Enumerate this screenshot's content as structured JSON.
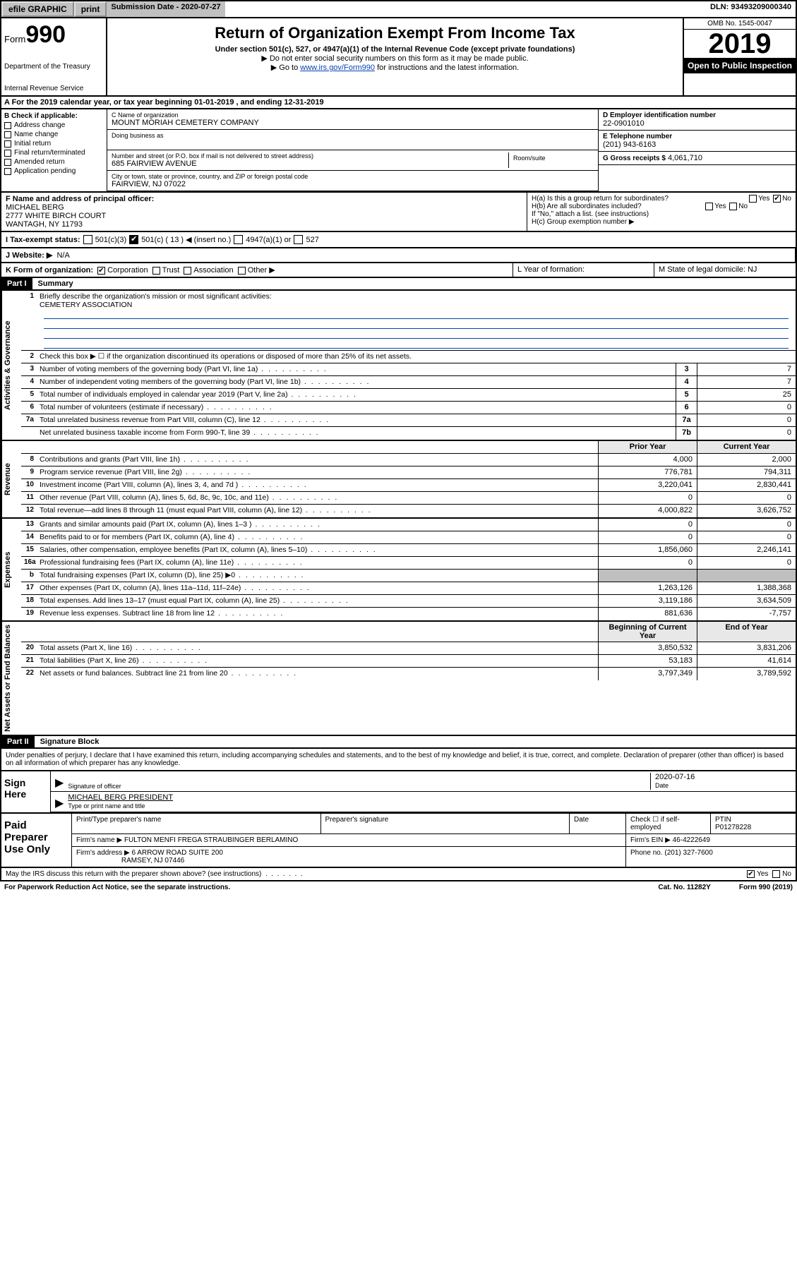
{
  "topbar": {
    "efile": "efile GRAPHIC",
    "print": "print",
    "subdate_label": "Submission Date - 2020-07-27",
    "dln": "DLN: 93493209000340"
  },
  "header": {
    "form_label": "Form",
    "form_no": "990",
    "dept1": "Department of the Treasury",
    "dept2": "Internal Revenue Service",
    "title": "Return of Organization Exempt From Income Tax",
    "sub1": "Under section 501(c), 527, or 4947(a)(1) of the Internal Revenue Code (except private foundations)",
    "sub2": "▶ Do not enter social security numbers on this form as it may be made public.",
    "sub3_pre": "▶ Go to ",
    "sub3_link": "www.irs.gov/Form990",
    "sub3_post": " for instructions and the latest information.",
    "omb": "OMB No. 1545-0047",
    "year": "2019",
    "open": "Open to Public Inspection"
  },
  "rowA": "A   For the 2019 calendar year, or tax year beginning 01-01-2019     , and ending 12-31-2019",
  "sectionB": {
    "label": "B Check if applicable:",
    "items": [
      "Address change",
      "Name change",
      "Initial return",
      "Final return/terminated",
      "Amended return",
      "Application pending"
    ]
  },
  "sectionC": {
    "name_lbl": "C Name of organization",
    "name": "MOUNT MORIAH CEMETERY COMPANY",
    "dba_lbl": "Doing business as",
    "addr_lbl": "Number and street (or P.O. box if mail is not delivered to street address)",
    "room_lbl": "Room/suite",
    "addr": "685 FAIRVIEW AVENUE",
    "city_lbl": "City or town, state or province, country, and ZIP or foreign postal code",
    "city": "FAIRVIEW, NJ  07022"
  },
  "sectionD": {
    "lbl": "D Employer identification number",
    "val": "22-0901010"
  },
  "sectionE": {
    "lbl": "E Telephone number",
    "val": "(201) 943-6163"
  },
  "sectionG": {
    "lbl": "G Gross receipts $",
    "val": "4,061,710"
  },
  "sectionF": {
    "lbl": "F  Name and address of principal officer:",
    "name": "MICHAEL BERG",
    "addr1": "2777 WHITE BIRCH COURT",
    "addr2": "WANTAGH, NY  11793"
  },
  "sectionH": {
    "a": "H(a)  Is this a group return for subordinates?",
    "a_yes": "Yes",
    "a_no": "No",
    "b": "H(b)  Are all subordinates included?",
    "b_yes": "Yes",
    "b_no": "No",
    "b_note": "If \"No,\" attach a list. (see instructions)",
    "c": "H(c)  Group exemption number ▶"
  },
  "taxstatus": {
    "lbl": "I    Tax-exempt status:",
    "o1": "501(c)(3)",
    "o2": "501(c) ( 13 ) ◀ (insert no.)",
    "o3": "4947(a)(1) or",
    "o4": "527"
  },
  "rowJ": {
    "lbl": "J   Website: ▶",
    "val": "N/A"
  },
  "rowK": {
    "lbl": "K Form of organization:",
    "o1": "Corporation",
    "o2": "Trust",
    "o3": "Association",
    "o4": "Other ▶",
    "L": "L Year of formation:",
    "M": "M State of legal domicile: NJ"
  },
  "part1": {
    "hdr": "Part I",
    "title": "Summary"
  },
  "vtabs": {
    "gov": "Activities & Governance",
    "rev": "Revenue",
    "exp": "Expenses",
    "net": "Net Assets or Fund Balances"
  },
  "summary": {
    "q1": "Briefly describe the organization's mission or most significant activities:",
    "q1_val": "CEMETERY ASSOCIATION",
    "q2": "Check this box ▶ ☐  if the organization discontinued its operations or disposed of more than 25% of its net assets.",
    "rows_single": [
      {
        "n": "3",
        "t": "Number of voting members of the governing body (Part VI, line 1a)",
        "c": "3",
        "v": "7"
      },
      {
        "n": "4",
        "t": "Number of independent voting members of the governing body (Part VI, line 1b)",
        "c": "4",
        "v": "7"
      },
      {
        "n": "5",
        "t": "Total number of individuals employed in calendar year 2019 (Part V, line 2a)",
        "c": "5",
        "v": "25"
      },
      {
        "n": "6",
        "t": "Total number of volunteers (estimate if necessary)",
        "c": "6",
        "v": "0"
      },
      {
        "n": "7a",
        "t": "Total unrelated business revenue from Part VIII, column (C), line 12",
        "c": "7a",
        "v": "0"
      },
      {
        "n": "",
        "t": "Net unrelated business taxable income from Form 990-T, line 39",
        "c": "7b",
        "v": "0"
      }
    ],
    "col_hdr_prior": "Prior Year",
    "col_hdr_curr": "Current Year",
    "revenue": [
      {
        "n": "8",
        "t": "Contributions and grants (Part VIII, line 1h)",
        "p": "4,000",
        "c": "2,000"
      },
      {
        "n": "9",
        "t": "Program service revenue (Part VIII, line 2g)",
        "p": "776,781",
        "c": "794,311"
      },
      {
        "n": "10",
        "t": "Investment income (Part VIII, column (A), lines 3, 4, and 7d )",
        "p": "3,220,041",
        "c": "2,830,441"
      },
      {
        "n": "11",
        "t": "Other revenue (Part VIII, column (A), lines 5, 6d, 8c, 9c, 10c, and 11e)",
        "p": "0",
        "c": "0"
      },
      {
        "n": "12",
        "t": "Total revenue—add lines 8 through 11 (must equal Part VIII, column (A), line 12)",
        "p": "4,000,822",
        "c": "3,626,752"
      }
    ],
    "expenses": [
      {
        "n": "13",
        "t": "Grants and similar amounts paid (Part IX, column (A), lines 1–3 )",
        "p": "0",
        "c": "0"
      },
      {
        "n": "14",
        "t": "Benefits paid to or for members (Part IX, column (A), line 4)",
        "p": "0",
        "c": "0"
      },
      {
        "n": "15",
        "t": "Salaries, other compensation, employee benefits (Part IX, column (A), lines 5–10)",
        "p": "1,856,060",
        "c": "2,246,141"
      },
      {
        "n": "16a",
        "t": "Professional fundraising fees (Part IX, column (A), line 11e)",
        "p": "0",
        "c": "0"
      },
      {
        "n": "b",
        "t": "Total fundraising expenses (Part IX, column (D), line 25) ▶0",
        "p": "",
        "c": "",
        "grey": true
      },
      {
        "n": "17",
        "t": "Other expenses (Part IX, column (A), lines 11a–11d, 11f–24e)",
        "p": "1,263,126",
        "c": "1,388,368"
      },
      {
        "n": "18",
        "t": "Total expenses. Add lines 13–17 (must equal Part IX, column (A), line 25)",
        "p": "3,119,186",
        "c": "3,634,509"
      },
      {
        "n": "19",
        "t": "Revenue less expenses. Subtract line 18 from line 12",
        "p": "881,636",
        "c": "-7,757"
      }
    ],
    "col_hdr_beg": "Beginning of Current Year",
    "col_hdr_end": "End of Year",
    "netassets": [
      {
        "n": "20",
        "t": "Total assets (Part X, line 16)",
        "p": "3,850,532",
        "c": "3,831,206"
      },
      {
        "n": "21",
        "t": "Total liabilities (Part X, line 26)",
        "p": "53,183",
        "c": "41,614"
      },
      {
        "n": "22",
        "t": "Net assets or fund balances. Subtract line 21 from line 20",
        "p": "3,797,349",
        "c": "3,789,592"
      }
    ]
  },
  "part2": {
    "hdr": "Part II",
    "title": "Signature Block"
  },
  "sig_text": "Under penalties of perjury, I declare that I have examined this return, including accompanying schedules and statements, and to the best of my knowledge and belief, it is true, correct, and complete. Declaration of preparer (other than officer) is based on all information of which preparer has any knowledge.",
  "sign": {
    "here": "Sign Here",
    "sig_lbl": "Signature of officer",
    "date": "2020-07-16",
    "date_lbl": "Date",
    "name": "MICHAEL BERG PRESIDENT",
    "name_lbl": "Type or print name and title"
  },
  "prep": {
    "title": "Paid Preparer Use Only",
    "h1": "Print/Type preparer's name",
    "h2": "Preparer's signature",
    "h3": "Date",
    "h4_a": "Check ☐ if self-employed",
    "h4_b": "PTIN",
    "ptin": "P01278228",
    "firm_lbl": "Firm's name    ▶",
    "firm": "FULTON MENFI FREGA STRAUBINGER BERLAMINO",
    "ein_lbl": "Firm's EIN ▶",
    "ein": "46-4222649",
    "addr_lbl": "Firm's address ▶",
    "addr1": "6 ARROW ROAD SUITE 200",
    "addr2": "RAMSEY, NJ  07446",
    "phone_lbl": "Phone no.",
    "phone": "(201) 327-7600"
  },
  "foot": {
    "q": "May the IRS discuss this return with the preparer shown above? (see instructions)",
    "yes": "Yes",
    "no": "No",
    "pra": "For Paperwork Reduction Act Notice, see the separate instructions.",
    "cat": "Cat. No. 11282Y",
    "form": "Form 990 (2019)"
  }
}
